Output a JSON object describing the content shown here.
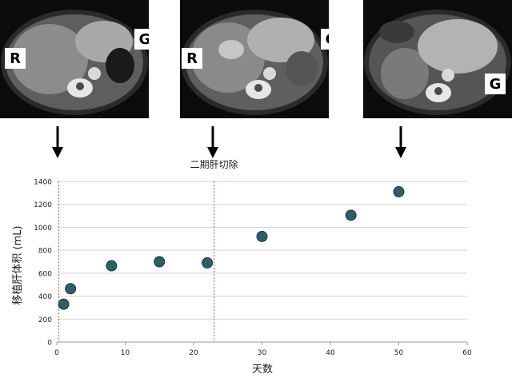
{
  "panels": [
    {
      "labels": [
        "R",
        "G"
      ]
    },
    {
      "labels": [
        "R",
        "G"
      ]
    },
    {
      "labels": [
        "G"
      ]
    }
  ],
  "icons": {
    "arrow": "down-arrow-icon"
  },
  "colors": {
    "marker": "#2f5d68",
    "marker_edge": "#1c3b44",
    "grid": "#d3d3d3",
    "annotation_line": "#d9534f",
    "axis": "#9a9a9a"
  },
  "chart_data": {
    "type": "scatter",
    "title": "",
    "xlabel": "天数",
    "ylabel": "移植肝体积 (mL)",
    "xlim": [
      0,
      60
    ],
    "ylim": [
      0,
      1400
    ],
    "xticks": [
      0,
      10,
      20,
      30,
      40,
      50,
      60
    ],
    "yticks": [
      0,
      200,
      400,
      600,
      800,
      1000,
      1200,
      1400
    ],
    "grid": "horizontal",
    "points": [
      {
        "x": 1,
        "y": 330
      },
      {
        "x": 2,
        "y": 465
      },
      {
        "x": 8,
        "y": 665
      },
      {
        "x": 15,
        "y": 700
      },
      {
        "x": 22,
        "y": 690
      },
      {
        "x": 30,
        "y": 920
      },
      {
        "x": 43,
        "y": 1105
      },
      {
        "x": 50,
        "y": 1310
      }
    ],
    "vlines": [
      {
        "x": 0.3,
        "label": ""
      },
      {
        "x": 23,
        "label": "二期肝切除"
      }
    ]
  }
}
